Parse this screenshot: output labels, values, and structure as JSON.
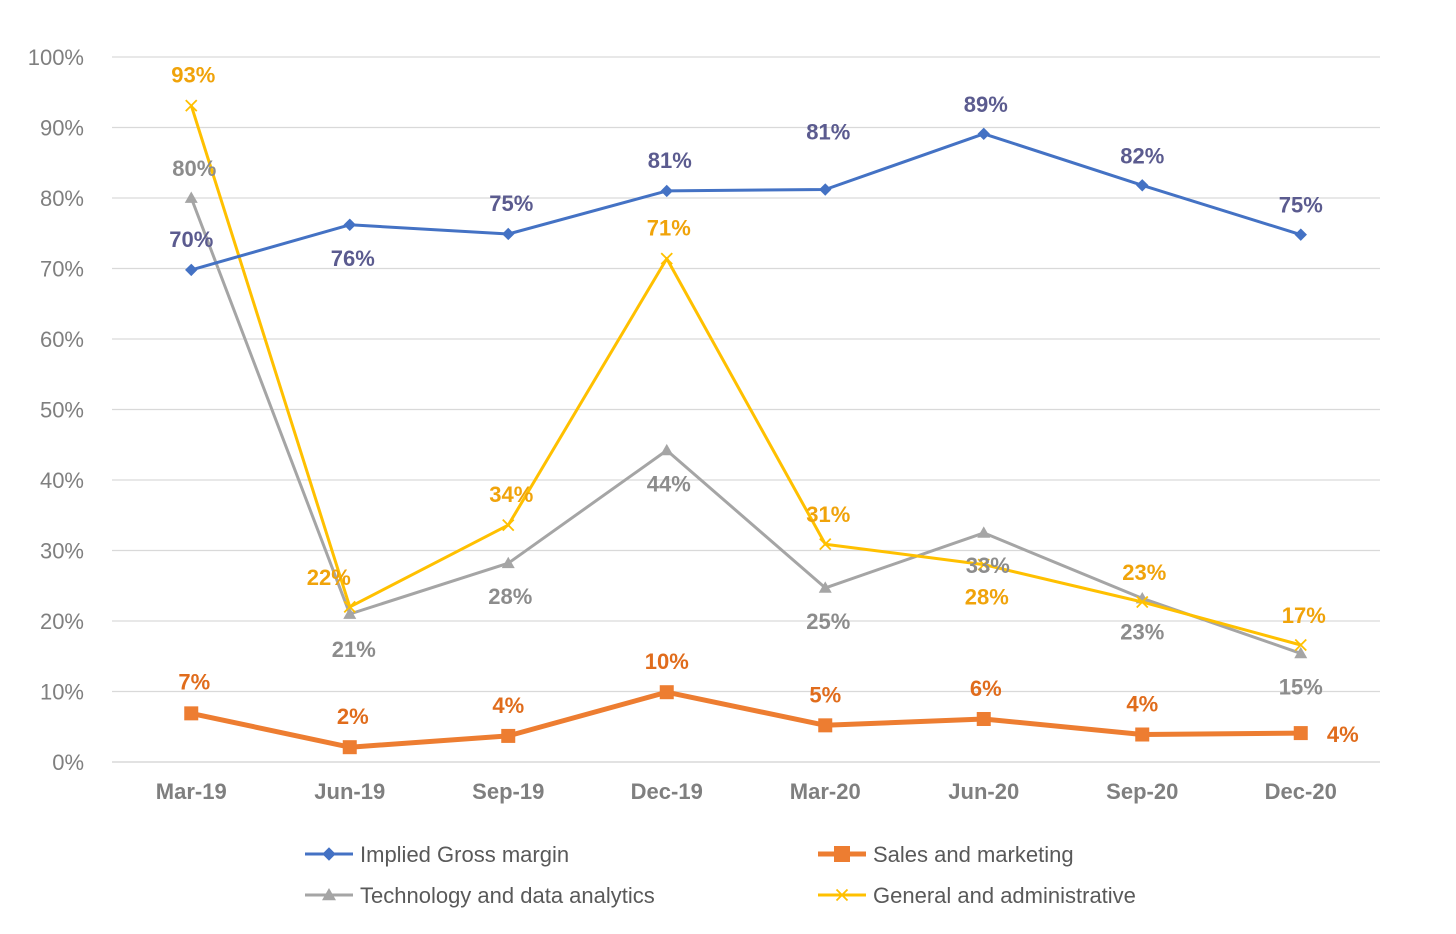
{
  "chart_data": {
    "type": "line",
    "categories": [
      "Mar-19",
      "Jun-19",
      "Sep-19",
      "Dec-19",
      "Mar-20",
      "Jun-20",
      "Sep-20",
      "Dec-20"
    ],
    "ylim": [
      0,
      100
    ],
    "yticks": [
      "0%",
      "10%",
      "20%",
      "30%",
      "40%",
      "50%",
      "60%",
      "70%",
      "80%",
      "90%",
      "100%"
    ],
    "grid": true,
    "legend_position": "bottom",
    "series": [
      {
        "name": "Implied Gross margin",
        "values": [
          69.8,
          76.2,
          74.9,
          81.0,
          81.2,
          89.1,
          81.8,
          74.8
        ],
        "labels": [
          "70%",
          "76%",
          "75%",
          "81%",
          "81%",
          "89%",
          "82%",
          "75%"
        ],
        "color": "#4472c4",
        "label_color": "#5b5b8f",
        "marker": "diamond"
      },
      {
        "name": "Sales and marketing",
        "values": [
          6.9,
          2.1,
          3.7,
          9.9,
          5.2,
          6.1,
          3.9,
          4.1
        ],
        "labels": [
          "7%",
          "2%",
          "4%",
          "10%",
          "5%",
          "6%",
          "4%",
          "4%"
        ],
        "color": "#ed7d31",
        "label_color": "#e06c1c",
        "marker": "square"
      },
      {
        "name": "Technology and data analytics",
        "values": [
          80.0,
          21.0,
          28.2,
          44.2,
          24.7,
          32.5,
          23.2,
          15.4
        ],
        "labels": [
          "80%",
          "21%",
          "28%",
          "44%",
          "25%",
          "33%",
          "23%",
          "15%"
        ],
        "color": "#a5a5a5",
        "label_color": "#8c8c8c",
        "marker": "triangle"
      },
      {
        "name": "General and administrative",
        "values": [
          93.1,
          22.0,
          33.6,
          71.4,
          30.9,
          28.0,
          22.7,
          16.6
        ],
        "labels": [
          "93%",
          "22%",
          "34%",
          "71%",
          "31%",
          "28%",
          "23%",
          "17%"
        ],
        "color": "#ffc000",
        "label_color": "#f0a30a",
        "marker": "x"
      }
    ]
  }
}
